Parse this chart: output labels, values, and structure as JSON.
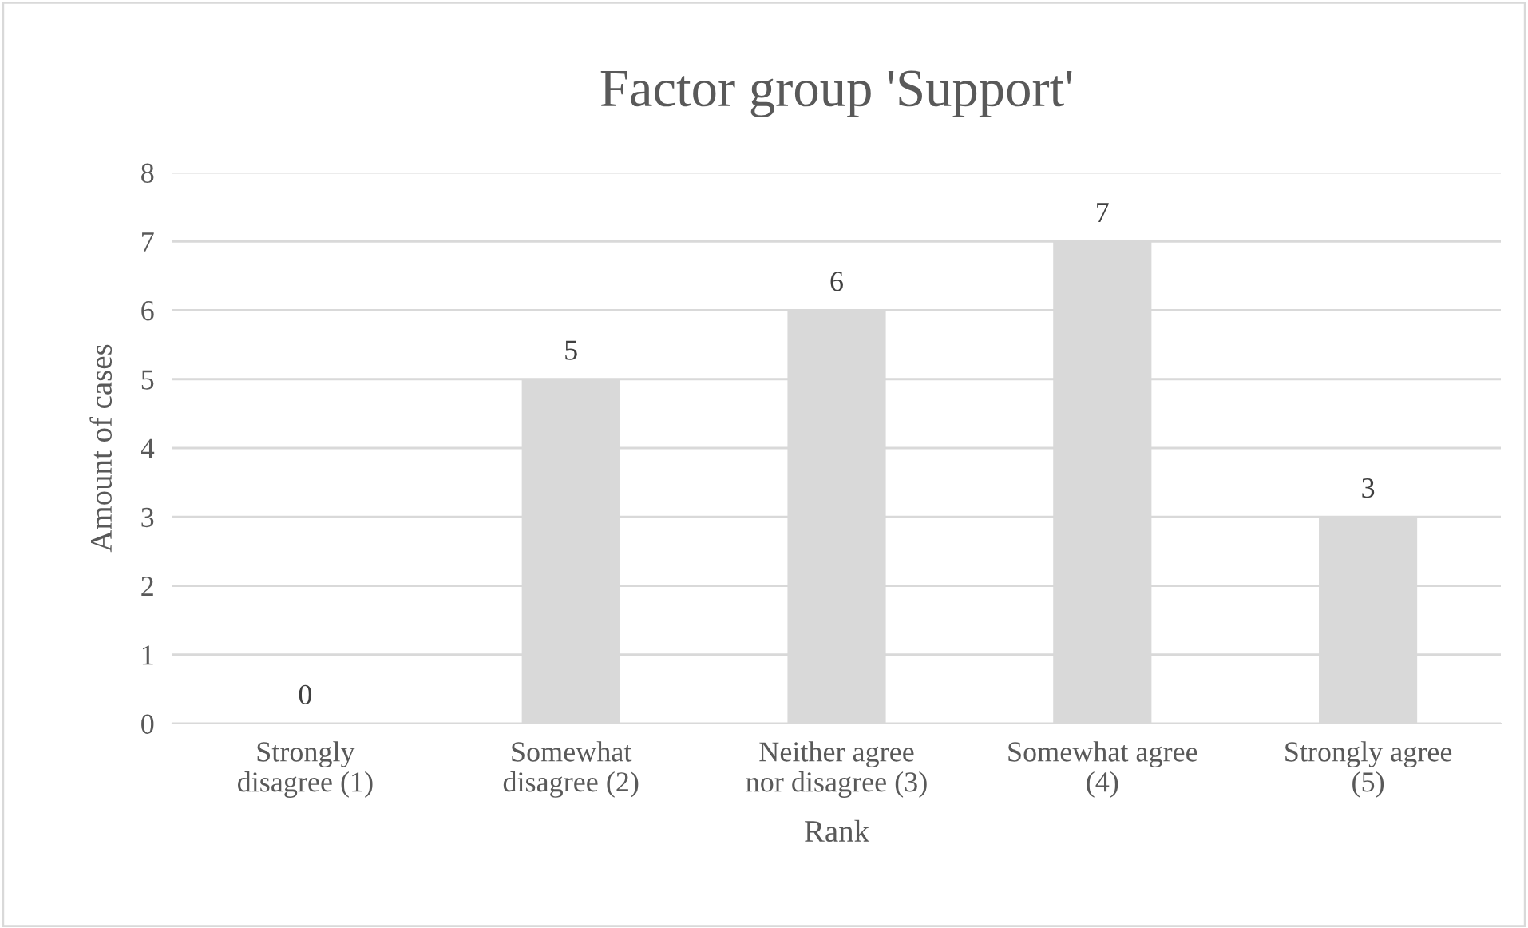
{
  "chart_data": {
    "type": "bar",
    "title": "Factor group 'Support'",
    "xlabel": "Rank",
    "ylabel": "Amount of cases",
    "categories": [
      "Strongly\ndisagree (1)",
      "Somewhat\ndisagree (2)",
      "Neither agree\nnor disagree (3)",
      "Somewhat agree\n(4)",
      "Strongly agree\n(5)"
    ],
    "values": [
      0,
      5,
      6,
      7,
      3
    ],
    "color": "#d9d9d9",
    "ylim": [
      0,
      8
    ],
    "yticks": [
      0,
      1,
      2,
      3,
      4,
      5,
      6,
      7,
      8
    ],
    "grid": "y",
    "data_labels": true,
    "legend": false
  }
}
